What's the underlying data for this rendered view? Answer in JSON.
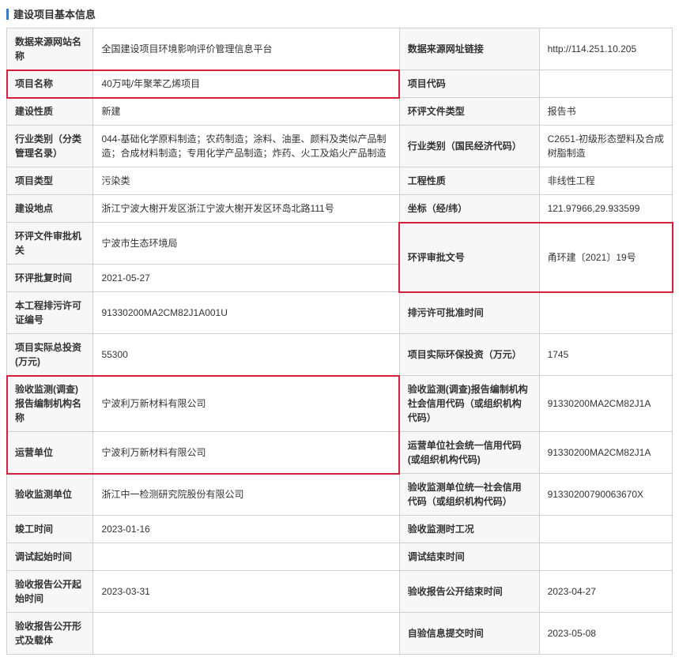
{
  "colors": {
    "accent_bar": "#2b7cd3",
    "border": "#d0d0d0",
    "label_bg": "#f7f7f7",
    "highlight_border": "#d6203b",
    "text": "#333333"
  },
  "header": {
    "title": "建设项目基本信息"
  },
  "rows": [
    {
      "l1": "数据来源网站名称",
      "v1": "全国建设项目环境影响评价管理信息平台",
      "l2": "数据来源网址链接",
      "v2": "http://114.251.10.205"
    },
    {
      "l1": "项目名称",
      "v1": "40万吨/年聚苯乙烯项目",
      "l2": "项目代码",
      "v2": ""
    },
    {
      "l1": "建设性质",
      "v1": "新建",
      "l2": "环评文件类型",
      "v2": "报告书"
    },
    {
      "l1": "行业类别（分类管理名录）",
      "v1": "044-基础化学原料制造；农药制造；涂料、油墨、颜料及类似产品制造；合成材料制造；专用化学产品制造；炸药、火工及焰火产品制造",
      "l2": "行业类别（国民经济代码）",
      "v2": "C2651-初级形态塑料及合成树脂制造"
    },
    {
      "l1": "项目类型",
      "v1": "污染类",
      "l2": "工程性质",
      "v2": "非线性工程"
    },
    {
      "l1": "建设地点",
      "v1": "浙江宁波大榭开发区浙江宁波大榭开发区环岛北路111号",
      "l2": "坐标（经/纬）",
      "v2": "121.97966,29.933599"
    },
    {
      "l1": "环评文件审批机关",
      "v1": "宁波市生态环境局",
      "l2": "环评审批文号",
      "v2": "甬环建〔2021〕19号",
      "merged_right": true
    },
    {
      "l1": "环评批复时间",
      "v1": "2021-05-27"
    },
    {
      "l1": "本工程排污许可证编号",
      "v1": "91330200MA2CM82J1A001U",
      "l2": "排污许可批准时间",
      "v2": ""
    },
    {
      "l1": "项目实际总投资(万元)",
      "v1": "55300",
      "l2": "项目实际环保投资（万元）",
      "v2": "1745"
    },
    {
      "l1": "验收监测(调查)报告编制机构名称",
      "v1": "宁波利万新材料有限公司",
      "l2": "验收监测(调查)报告编制机构社会信用代码（或组织机构代码）",
      "v2": "91330200MA2CM82J1A"
    },
    {
      "l1": "运营单位",
      "v1": "宁波利万新材料有限公司",
      "l2": "运营单位社会统一信用代码(或组织机构代码)",
      "v2": "91330200MA2CM82J1A"
    },
    {
      "l1": "验收监测单位",
      "v1": "浙江中一检测研究院股份有限公司",
      "l2": "验收监测单位统一社会信用代码（或组织机构代码）",
      "v2": "91330200790063670X"
    },
    {
      "l1": "竣工时间",
      "v1": "2023-01-16",
      "l2": "验收监测时工况",
      "v2": ""
    },
    {
      "l1": "调试起始时间",
      "v1": "",
      "l2": "调试结束时间",
      "v2": ""
    },
    {
      "l1": "验收报告公开起始时间",
      "v1": "2023-03-31",
      "l2": "验收报告公开结束时间",
      "v2": "2023-04-27"
    },
    {
      "l1": "验收报告公开形式及载体",
      "v1": "",
      "l2": "自验信息提交时间",
      "v2": "2023-05-08"
    }
  ]
}
